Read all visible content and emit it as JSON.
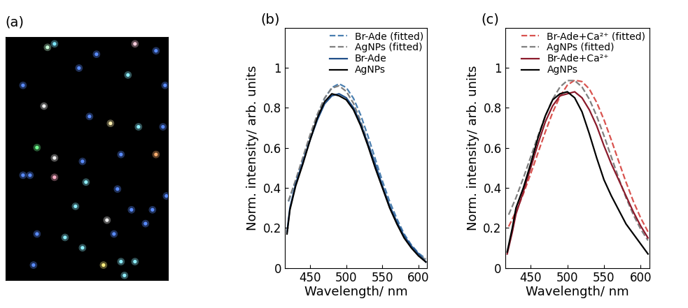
{
  "chart_data": [
    {
      "type": "scatter",
      "label": "(a)",
      "tick_labels": false,
      "background": "#000000",
      "xlim": [
        0,
        232
      ],
      "ylim": [
        352,
        0
      ],
      "x": [
        60,
        70,
        185,
        130,
        215,
        105,
        175,
        228,
        25,
        55,
        120,
        150,
        190,
        225,
        45,
        70,
        110,
        215,
        165,
        25,
        35,
        70,
        115,
        160,
        230,
        180,
        210,
        100,
        145,
        200,
        155,
        85,
        45,
        110,
        165,
        140,
        185,
        170,
        40
      ],
      "y": [
        15,
        10,
        10,
        25,
        20,
        45,
        55,
        70,
        70,
        100,
        115,
        125,
        130,
        130,
        160,
        175,
        180,
        170,
        170,
        200,
        200,
        203,
        210,
        220,
        230,
        250,
        250,
        245,
        265,
        270,
        285,
        290,
        285,
        305,
        325,
        330,
        325,
        345,
        330
      ],
      "colors": [
        "#c8ffd8",
        "#7fe8ff",
        "#ffd0e0",
        "#5a8cff",
        "#5a8cff",
        "#5a8cff",
        "#8ff0ff",
        "#5a8cff",
        "#5a8cff",
        "#f0f0f0",
        "#5a8cff",
        "#fff0b0",
        "#8ff0ff",
        "#5a8cff",
        "#70ff90",
        "#f0f0f0",
        "#5a8cff",
        "#ffb070",
        "#5a8cff",
        "#5a8cff",
        "#5a8cff",
        "#ffb0c8",
        "#8ff0ff",
        "#5a8cff",
        "#5a8cff",
        "#5a8cff",
        "#5a8cff",
        "#8ff0ff",
        "#f0f0f0",
        "#5a8cff",
        "#5a8cff",
        "#8ff0ff",
        "#5a8cff",
        "#8ff0ff",
        "#8ff0ff",
        "#fff080",
        "#8ff0ff",
        "#8ff0ff",
        "#5a8cff"
      ]
    },
    {
      "type": "line",
      "label": "(b)",
      "x_label": "Wavelength/ nm",
      "y_label": "Norm. intensity/ arb. units",
      "xlim": [
        415,
        612
      ],
      "ylim": [
        0,
        1.2
      ],
      "xticks": [
        450,
        500,
        550,
        600
      ],
      "yticks": [
        0,
        0.2,
        0.4,
        0.6,
        0.8,
        1
      ],
      "legend": "upper right",
      "series": [
        {
          "name": "Br-Ade (fitted)",
          "color": "#4a7fb0",
          "line_style": "dashed",
          "x": [
            420,
            430,
            440,
            450,
            460,
            470,
            480,
            490,
            500,
            510,
            520,
            530,
            540,
            550,
            560,
            570,
            580,
            590,
            600,
            610
          ],
          "values": [
            0.332,
            0.434,
            0.546,
            0.659,
            0.763,
            0.847,
            0.901,
            0.92,
            0.901,
            0.847,
            0.763,
            0.659,
            0.546,
            0.434,
            0.332,
            0.246,
            0.17,
            0.115,
            0.074,
            0.046
          ]
        },
        {
          "name": "AgNPs (fitted)",
          "color": "#7f7f7f",
          "line_style": "dashed",
          "x": [
            420,
            430,
            440,
            450,
            460,
            470,
            480,
            490,
            500,
            510,
            520,
            530,
            540,
            550,
            560,
            570,
            580,
            590,
            600,
            610
          ],
          "values": [
            0.335,
            0.44,
            0.553,
            0.666,
            0.768,
            0.849,
            0.898,
            0.91,
            0.882,
            0.822,
            0.732,
            0.626,
            0.514,
            0.405,
            0.307,
            0.224,
            0.156,
            0.104,
            0.067,
            0.041
          ]
        },
        {
          "name": "Br-Ade",
          "color": "#1f4e88",
          "line_style": "solid",
          "x": [
            418,
            422,
            430,
            440,
            450,
            460,
            470,
            480,
            490,
            500,
            510,
            520,
            530,
            540,
            550,
            560,
            570,
            580,
            590,
            600,
            610
          ],
          "values": [
            0.18,
            0.3,
            0.42,
            0.53,
            0.64,
            0.74,
            0.82,
            0.86,
            0.87,
            0.85,
            0.8,
            0.72,
            0.62,
            0.52,
            0.41,
            0.31,
            0.23,
            0.16,
            0.11,
            0.07,
            0.03
          ]
        },
        {
          "name": "AgNPs",
          "color": "#000000",
          "line_style": "solid",
          "x": [
            418,
            422,
            430,
            440,
            450,
            460,
            470,
            480,
            490,
            500,
            510,
            520,
            530,
            540,
            550,
            560,
            570,
            580,
            590,
            600,
            610
          ],
          "values": [
            0.17,
            0.29,
            0.41,
            0.52,
            0.64,
            0.75,
            0.83,
            0.87,
            0.86,
            0.84,
            0.79,
            0.71,
            0.61,
            0.5,
            0.4,
            0.3,
            0.22,
            0.15,
            0.1,
            0.06,
            0.03
          ]
        }
      ]
    },
    {
      "type": "line",
      "label": "(c)",
      "x_label": "Wavelength/ nm",
      "y_label": "Norm. intensity/ arb. units",
      "xlim": [
        415,
        612
      ],
      "ylim": [
        0,
        1.2
      ],
      "xticks": [
        450,
        500,
        550,
        600
      ],
      "yticks": [
        0,
        0.2,
        0.4,
        0.6,
        0.8,
        1
      ],
      "legend": "upper right",
      "series": [
        {
          "name": "Br-Ade+Ca²⁺ (fitted)",
          "color": "#d9534f",
          "line_style": "dashed",
          "x": [
            420,
            430,
            440,
            450,
            460,
            470,
            480,
            490,
            500,
            510,
            520,
            530,
            540,
            550,
            560,
            570,
            580,
            590,
            600,
            610
          ],
          "values": [
            0.207,
            0.282,
            0.37,
            0.47,
            0.575,
            0.68,
            0.777,
            0.857,
            0.913,
            0.938,
            0.931,
            0.894,
            0.827,
            0.74,
            0.639,
            0.533,
            0.429,
            0.333,
            0.25,
            0.181
          ]
        },
        {
          "name": "AgNPs (fitted)",
          "color": "#7f7f7f",
          "line_style": "dashed",
          "x": [
            420,
            430,
            440,
            450,
            460,
            470,
            480,
            490,
            500,
            510,
            520,
            530,
            540,
            550,
            560,
            570,
            580,
            590,
            600,
            610
          ],
          "values": [
            0.266,
            0.351,
            0.449,
            0.554,
            0.66,
            0.759,
            0.843,
            0.904,
            0.936,
            0.936,
            0.904,
            0.843,
            0.759,
            0.66,
            0.554,
            0.449,
            0.351,
            0.266,
            0.194,
            0.137
          ]
        },
        {
          "name": "Br-Ade+Ca²⁺",
          "color": "#8b1a2b",
          "line_style": "solid",
          "x": [
            418,
            425,
            430,
            440,
            450,
            460,
            470,
            480,
            490,
            500,
            510,
            520,
            530,
            540,
            550,
            560,
            570,
            580,
            590,
            600,
            610
          ],
          "values": [
            0.07,
            0.18,
            0.27,
            0.38,
            0.5,
            0.62,
            0.73,
            0.81,
            0.86,
            0.87,
            0.88,
            0.85,
            0.79,
            0.71,
            0.61,
            0.52,
            0.44,
            0.36,
            0.28,
            0.21,
            0.15
          ]
        },
        {
          "name": "AgNPs",
          "color": "#000000",
          "line_style": "solid",
          "x": [
            418,
            425,
            430,
            440,
            450,
            460,
            470,
            480,
            490,
            500,
            510,
            520,
            530,
            540,
            550,
            560,
            570,
            580,
            590,
            600,
            610
          ],
          "values": [
            0.08,
            0.2,
            0.3,
            0.4,
            0.52,
            0.65,
            0.76,
            0.84,
            0.87,
            0.88,
            0.85,
            0.78,
            0.67,
            0.55,
            0.44,
            0.36,
            0.29,
            0.22,
            0.17,
            0.12,
            0.07
          ]
        }
      ]
    }
  ]
}
